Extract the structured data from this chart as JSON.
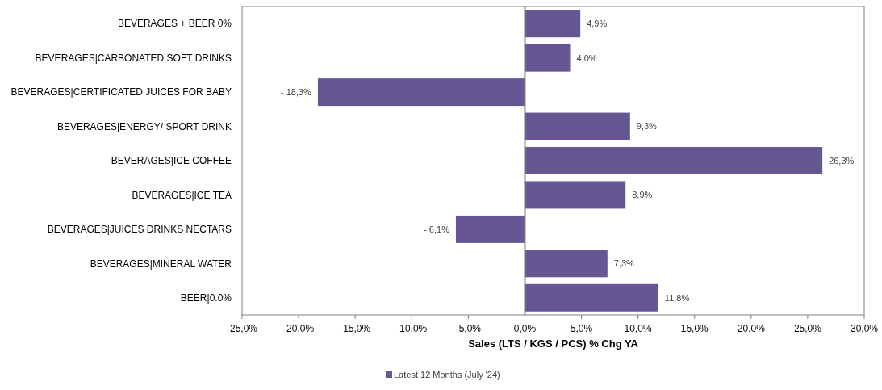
{
  "chart_data": {
    "type": "bar",
    "orientation": "horizontal",
    "xlabel": "Sales (LTS / KGS / PCS) % Chg YA",
    "categories": [
      "BEVERAGES + BEER 0%",
      "BEVERAGES|CARBONATED SOFT DRINKS",
      "BEVERAGES|CERTIFICATED JUICES FOR BABY",
      "BEVERAGES|ENERGY/ SPORT DRINK",
      "BEVERAGES|ICE COFFEE",
      "BEVERAGES|ICE TEA",
      "BEVERAGES|JUICES DRINKS NECTARS",
      "BEVERAGES|MINERAL WATER",
      "BEER|0.0%"
    ],
    "series": [
      {
        "name": "Latest 12 Months (July '24)",
        "color": "#665694",
        "values": [
          4.9,
          4.0,
          -18.3,
          9.3,
          26.3,
          8.9,
          -6.1,
          7.3,
          11.8
        ],
        "value_labels": [
          "4,9%",
          "4,0%",
          "- 18,3%",
          "9,3%",
          "26,3%",
          "8,9%",
          "- 6,1%",
          "7,3%",
          "11,8%"
        ]
      }
    ],
    "xlim": [
      -25,
      30
    ],
    "xticks": [
      {
        "value": -25,
        "label": "-25,0%"
      },
      {
        "value": -20,
        "label": "-20,0%"
      },
      {
        "value": -15,
        "label": "-15,0%"
      },
      {
        "value": -10,
        "label": "-10,0%"
      },
      {
        "value": -5,
        "label": "-5,0%"
      },
      {
        "value": 0,
        "label": "0,0%"
      },
      {
        "value": 5,
        "label": "5,0%"
      },
      {
        "value": 10,
        "label": "10,0%"
      },
      {
        "value": 15,
        "label": "15,0%"
      },
      {
        "value": 20,
        "label": "20,0%"
      },
      {
        "value": 25,
        "label": "25,0%"
      },
      {
        "value": 30,
        "label": "30,0%"
      }
    ],
    "legend": "bottom"
  }
}
